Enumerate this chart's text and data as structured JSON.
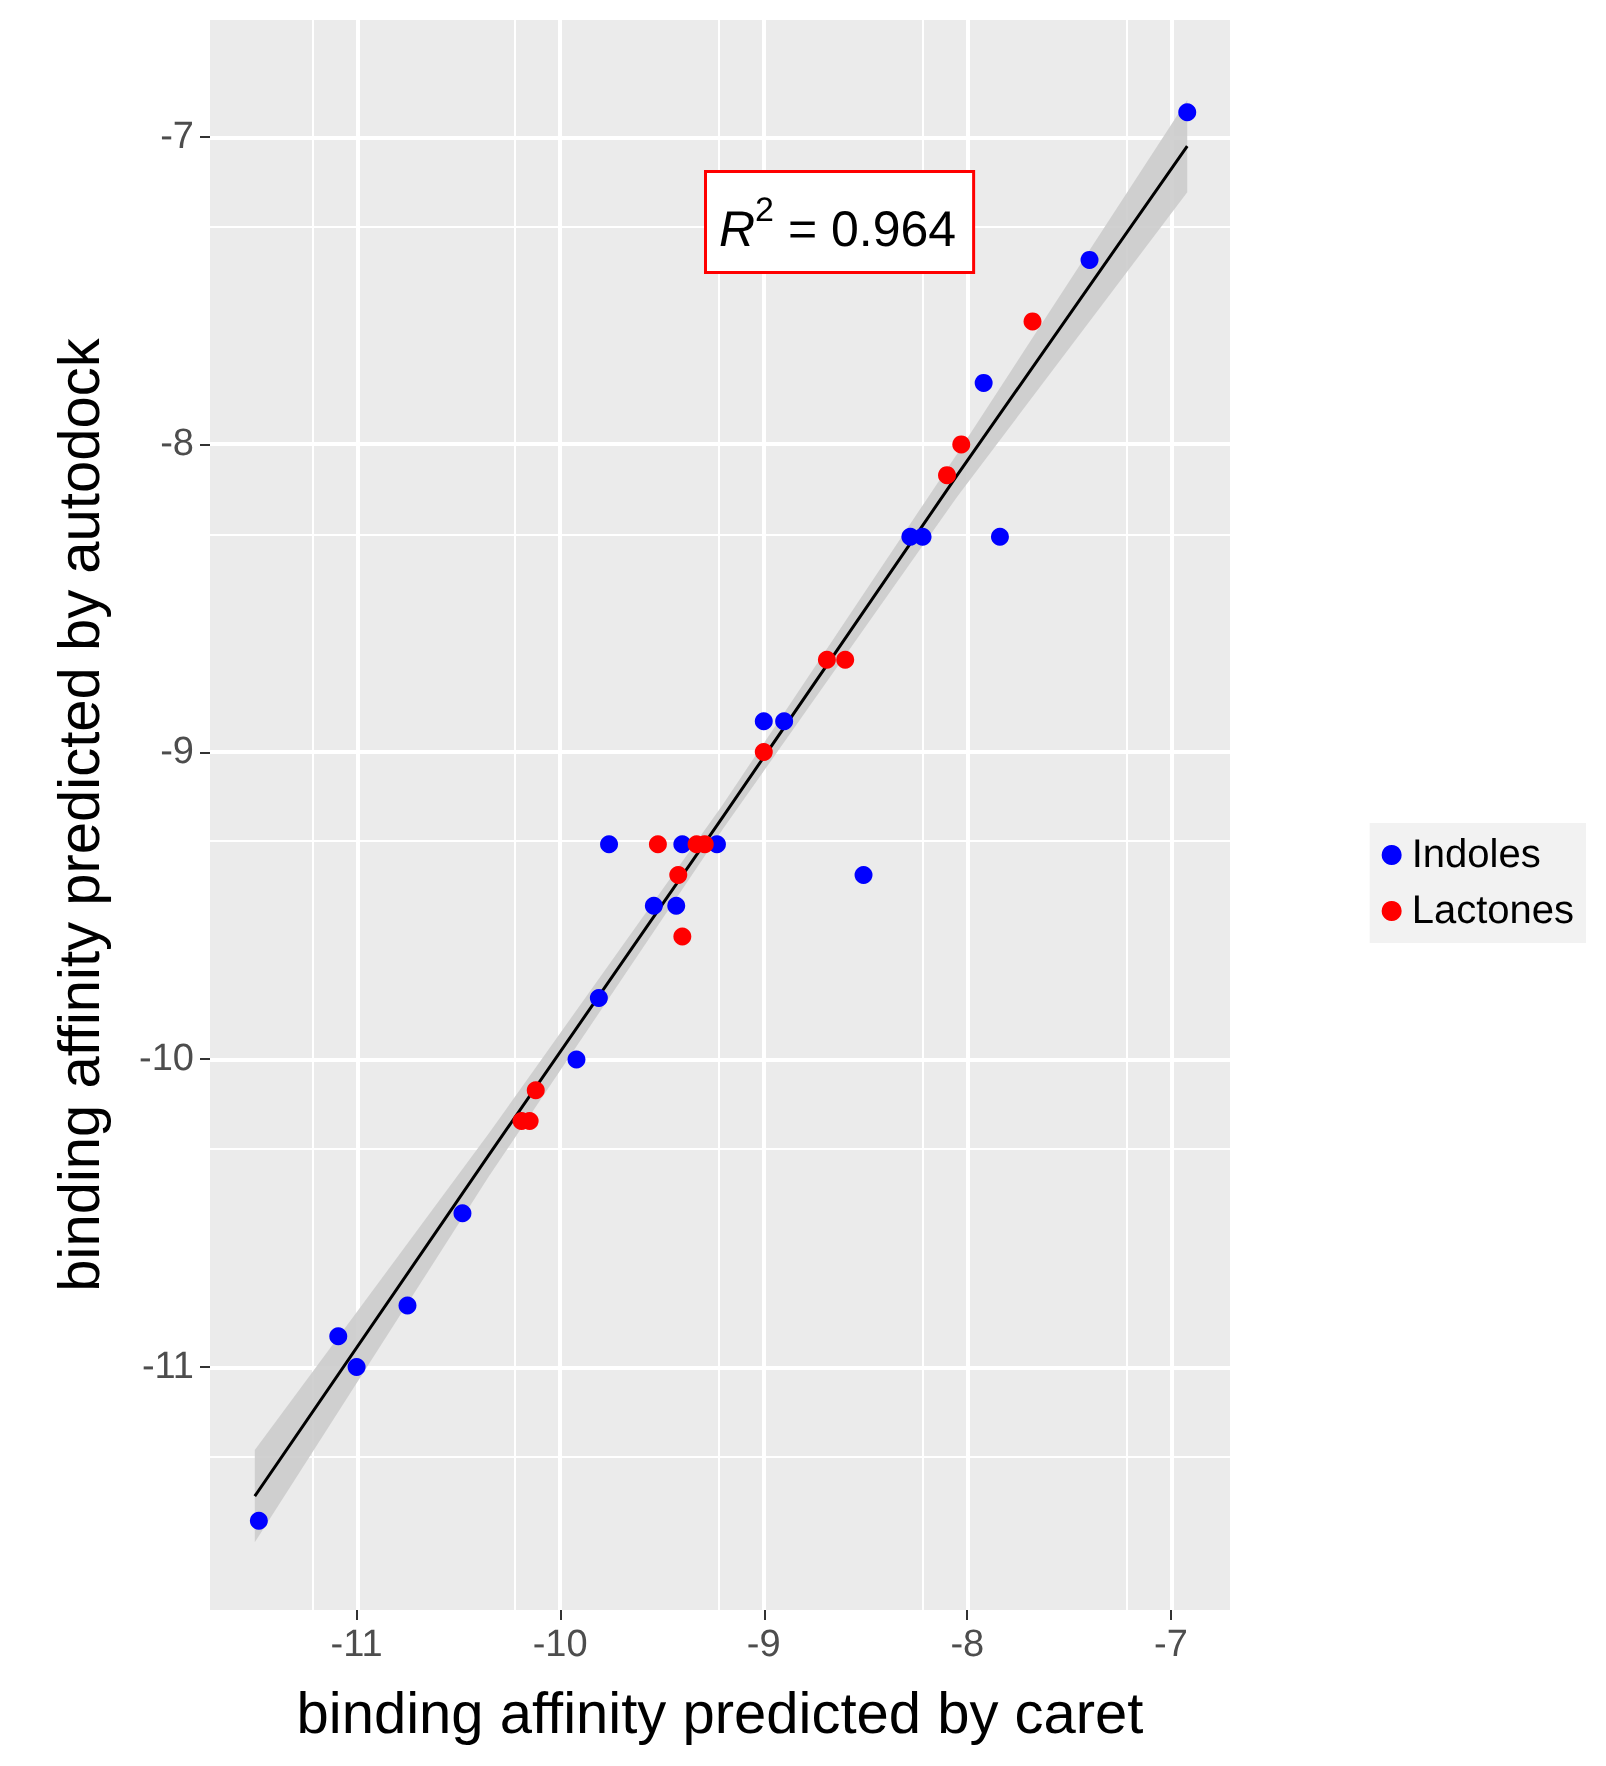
{
  "chart_data": {
    "type": "scatter",
    "xlabel": "binding affinity predicted by caret",
    "ylabel": "binding affinity predicted by autodock",
    "annotations": [
      "R$^{2}$ = 0.964"
    ],
    "series": [
      {
        "name": "Indoles",
        "color": "#0000ff",
        "x": [
          -6.92,
          -7.4,
          -7.92,
          -8.28,
          -8.22,
          -7.84,
          -9.0,
          -8.9,
          -8.51,
          -9.76,
          -9.4,
          -9.23,
          -9.54,
          -9.43,
          -9.81,
          -9.92,
          -10.48,
          -11.09,
          -11.0,
          -10.75,
          -11.48
        ],
        "values": [
          -6.92,
          -7.4,
          -7.8,
          -8.3,
          -8.3,
          -8.3,
          -8.9,
          -8.9,
          -9.4,
          -9.3,
          -9.3,
          -9.3,
          -9.5,
          -9.5,
          -9.8,
          -10.0,
          -10.5,
          -10.9,
          -11.0,
          -10.8,
          -11.5
        ]
      },
      {
        "name": "Lactones",
        "color": "#ff0000",
        "x": [
          -7.68,
          -8.03,
          -8.1,
          -8.69,
          -8.6,
          -9.0,
          -9.52,
          -9.29,
          -9.33,
          -9.42,
          -9.4,
          -10.12,
          -10.19,
          -10.15
        ],
        "values": [
          -7.6,
          -8.0,
          -8.1,
          -8.7,
          -8.7,
          -9.0,
          -9.3,
          -9.3,
          -9.3,
          -9.4,
          -9.6,
          -10.1,
          -10.2,
          -10.2
        ]
      },
      {
        "type": "line",
        "marker": "none",
        "color": "#000000",
        "x": [
          -11.5,
          -10.35,
          -9.2,
          -8.05,
          -6.92
        ],
        "values": [
          -11.42,
          -10.31,
          -9.21,
          -8.1,
          -7.03
        ],
        "lower": [
          -11.57,
          -10.38,
          -9.25,
          -8.17,
          -7.18
        ],
        "upper": [
          -11.27,
          -10.24,
          -9.17,
          -8.03,
          -6.88
        ]
      }
    ],
    "xlim": [
      -11.72,
      -6.71
    ],
    "xticks": [
      -11,
      -10,
      -9,
      -8,
      -7
    ],
    "ylim": [
      -11.79,
      -6.62
    ],
    "yticks": [
      -11,
      -10,
      -9,
      -8,
      -7
    ],
    "grid": true,
    "legend": "right",
    "marker": "circle"
  }
}
